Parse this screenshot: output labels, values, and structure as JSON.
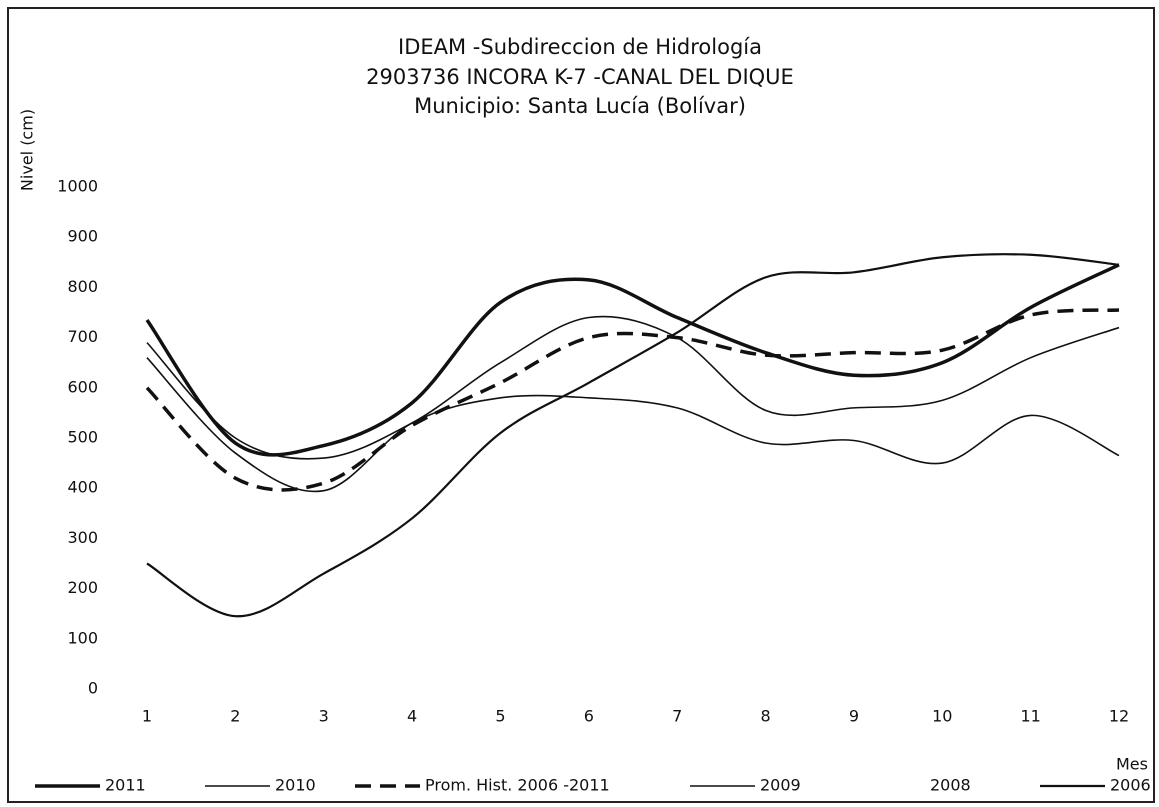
{
  "chart_data": {
    "type": "line",
    "title": [
      "IDEAM -Subdireccion de Hidrología",
      "2903736 INCORA K-7 -CANAL DEL DIQUE",
      "Municipio: Santa Lucía (Bolívar)"
    ],
    "y_label": "Nivel (cm)",
    "x_label": "Mes",
    "x": [
      1,
      2,
      3,
      4,
      5,
      6,
      7,
      8,
      9,
      10,
      11,
      12
    ],
    "xlim": [
      1,
      12
    ],
    "xticks": [
      1,
      2,
      3,
      4,
      5,
      6,
      7,
      8,
      9,
      10,
      11,
      12
    ],
    "ylim": [
      0,
      1000
    ],
    "yticks": [
      0,
      100,
      200,
      300,
      400,
      500,
      600,
      700,
      800,
      900,
      1000
    ],
    "series": [
      {
        "name": "2011",
        "color": "#111",
        "style": "solid",
        "linewidth": 3.5,
        "values": [
          735,
          490,
          485,
          570,
          770,
          815,
          740,
          670,
          625,
          650,
          760,
          845
        ]
      },
      {
        "name": "2010",
        "color": "#111",
        "style": "solid",
        "linewidth": 1.6,
        "values": [
          690,
          500,
          460,
          530,
          650,
          740,
          700,
          555,
          560,
          575,
          660,
          720
        ]
      },
      {
        "name": "Prom. Hist. 2006 -2011",
        "color": "#111",
        "style": "dashed",
        "linewidth": 3.5,
        "values": [
          600,
          420,
          410,
          525,
          610,
          700,
          700,
          665,
          670,
          675,
          745,
          755
        ]
      },
      {
        "name": "2009",
        "color": "#111",
        "style": "solid",
        "linewidth": 1.6,
        "values": [
          660,
          470,
          395,
          530,
          580,
          580,
          560,
          490,
          495,
          450,
          545,
          465
        ]
      },
      {
        "name": "2008",
        "color": "#111",
        "style": "solid",
        "linewidth": 1.6,
        "values": [
          null,
          null,
          null,
          null,
          null,
          null,
          null,
          null,
          null,
          null,
          null,
          null
        ]
      },
      {
        "name": "2006",
        "color": "#111",
        "style": "solid",
        "linewidth": 2.2,
        "values": [
          250,
          145,
          230,
          340,
          510,
          610,
          710,
          820,
          830,
          860,
          865,
          845
        ]
      }
    ]
  }
}
